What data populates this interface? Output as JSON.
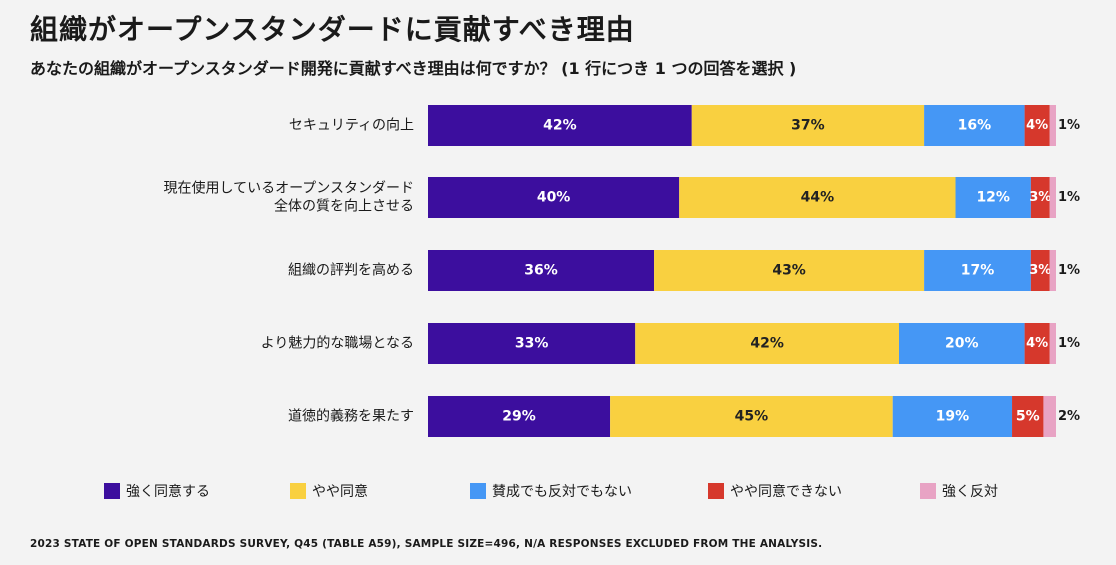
{
  "title": "組織がオープンスタンダードに貢献すべき理由",
  "subtitle": "あなたの組織がオープンスタンダード開発に貢献すべき理由は何ですか？ (1 行につき 1 つの回答を選択 )",
  "footnote": "2023 STATE OF OPEN STANDARDS SURVEY, Q45 (TABLE A59), SAMPLE SIZE=496, N/A RESPONSES EXCLUDED FROM THE ANALYSIS.",
  "chart_data": {
    "type": "bar",
    "orientation": "horizontal",
    "stacked": true,
    "unit": "%",
    "categories": [
      [
        "セキュリティの向上"
      ],
      [
        "現在使用しているオープンスタンダード",
        "全体の質を向上させる"
      ],
      [
        "組織の評判を高める"
      ],
      [
        "より魅力的な職場となる"
      ],
      [
        "道徳的義務を果たす"
      ]
    ],
    "series": [
      {
        "name": "強く同意する",
        "color": "#3c0e9e",
        "label_color": "#ffffff",
        "values": [
          42,
          40,
          36,
          33,
          29
        ]
      },
      {
        "name": "やや同意",
        "color": "#f9d040",
        "label_color": "#222222",
        "values": [
          37,
          44,
          43,
          42,
          45
        ]
      },
      {
        "name": "賛成でも反対でもない",
        "color": "#4597f5",
        "label_color": "#ffffff",
        "values": [
          16,
          12,
          17,
          20,
          19
        ]
      },
      {
        "name": "やや同意できない",
        "color": "#d6382c",
        "label_color": "#ffffff",
        "values": [
          4,
          3,
          3,
          4,
          5
        ]
      },
      {
        "name": "強く反対",
        "color": "#e8a3c4",
        "label_color": "#222222",
        "values": [
          1,
          1,
          1,
          1,
          2
        ]
      }
    ],
    "legend_position": "bottom",
    "grid": false
  }
}
